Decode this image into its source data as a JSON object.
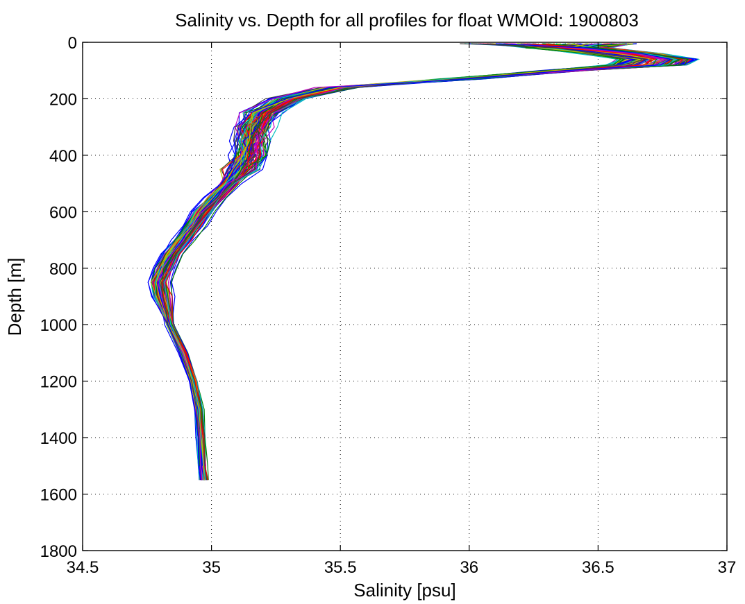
{
  "chart_data": {
    "type": "line",
    "title": "Salinity vs. Depth for all profiles for float WMOId: 1900803",
    "xlabel": "Salinity [psu]",
    "ylabel": "Depth [m]",
    "xlim": [
      34.5,
      37
    ],
    "ylim": [
      0,
      1800
    ],
    "y_reversed": true,
    "grid": true,
    "xticks": [
      34.5,
      35,
      35.5,
      36,
      36.5,
      37
    ],
    "xtick_labels": [
      "34.5",
      "35",
      "35.5",
      "36",
      "36.5",
      "37"
    ],
    "yticks": [
      0,
      200,
      400,
      600,
      800,
      1000,
      1200,
      1400,
      1600,
      1800
    ],
    "ytick_labels": [
      "0",
      "200",
      "400",
      "600",
      "800",
      "1000",
      "1200",
      "1400",
      "1600",
      "1800"
    ],
    "series_colors": [
      "#0000ff",
      "#008000",
      "#ff0000",
      "#00bfbf",
      "#bf00bf",
      "#bfbf00",
      "#404040"
    ],
    "profile_count": 120,
    "mean_profile": {
      "depth": [
        5,
        20,
        40,
        60,
        80,
        100,
        130,
        160,
        200,
        250,
        300,
        350,
        400,
        450,
        500,
        550,
        600,
        650,
        700,
        750,
        800,
        850,
        900,
        1000,
        1100,
        1200,
        1300,
        1400,
        1500,
        1550
      ],
      "salinity": [
        36.0,
        36.15,
        36.35,
        36.5,
        36.45,
        36.25,
        35.85,
        35.5,
        35.3,
        35.2,
        35.17,
        35.16,
        35.15,
        35.12,
        35.07,
        35.02,
        34.97,
        34.93,
        34.89,
        34.85,
        34.82,
        34.8,
        34.81,
        34.84,
        34.89,
        34.93,
        34.95,
        34.96,
        34.965,
        34.97
      ]
    }
  }
}
